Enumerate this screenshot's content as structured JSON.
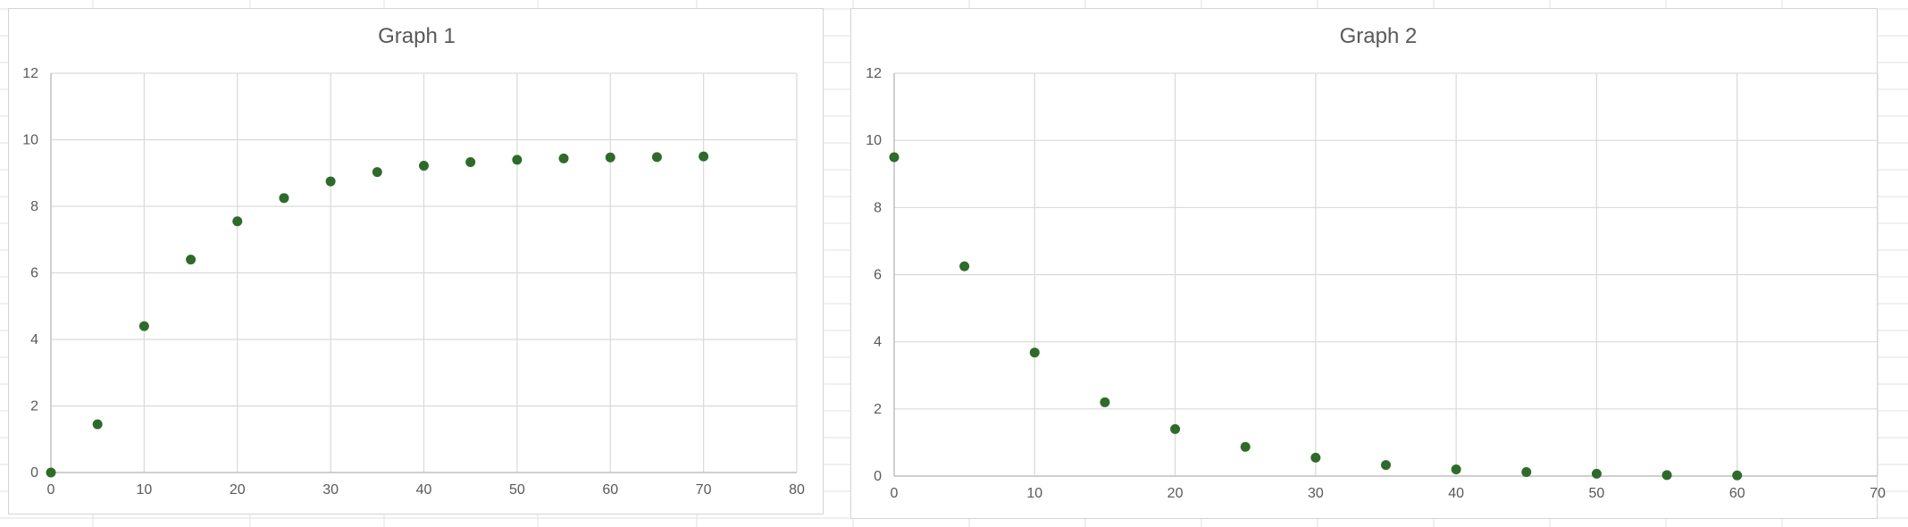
{
  "chart_data": [
    {
      "type": "scatter",
      "title": "Graph 1",
      "xlabel": "",
      "ylabel": "",
      "xlim": [
        0,
        80
      ],
      "ylim": [
        0,
        12
      ],
      "x_ticks": [
        "0",
        "10",
        "20",
        "30",
        "40",
        "50",
        "60",
        "70",
        "80"
      ],
      "y_ticks": [
        "0",
        "2",
        "4",
        "6",
        "8",
        "10",
        "12"
      ],
      "grid": true,
      "marker_color": "#2e6b2a",
      "x": [
        0,
        5,
        10,
        15,
        20,
        25,
        30,
        35,
        40,
        45,
        50,
        55,
        60,
        65,
        70
      ],
      "y": [
        0,
        1.45,
        4.4,
        6.4,
        7.55,
        8.25,
        8.75,
        9.03,
        9.22,
        9.33,
        9.4,
        9.44,
        9.47,
        9.48,
        9.5
      ]
    },
    {
      "type": "scatter",
      "title": "Graph 2",
      "xlabel": "",
      "ylabel": "",
      "xlim": [
        0,
        70
      ],
      "ylim": [
        0,
        12
      ],
      "x_ticks": [
        "0",
        "10",
        "20",
        "30",
        "40",
        "50",
        "60",
        "70"
      ],
      "y_ticks": [
        "0",
        "2",
        "4",
        "6",
        "8",
        "10",
        "12"
      ],
      "grid": true,
      "marker_color": "#2e6b2a",
      "x": [
        0,
        5,
        10,
        15,
        20,
        25,
        30,
        35,
        40,
        45,
        50,
        55,
        60
      ],
      "y": [
        9.5,
        6.25,
        3.68,
        2.2,
        1.4,
        0.87,
        0.55,
        0.33,
        0.2,
        0.12,
        0.07,
        0.03,
        0.02
      ]
    }
  ]
}
